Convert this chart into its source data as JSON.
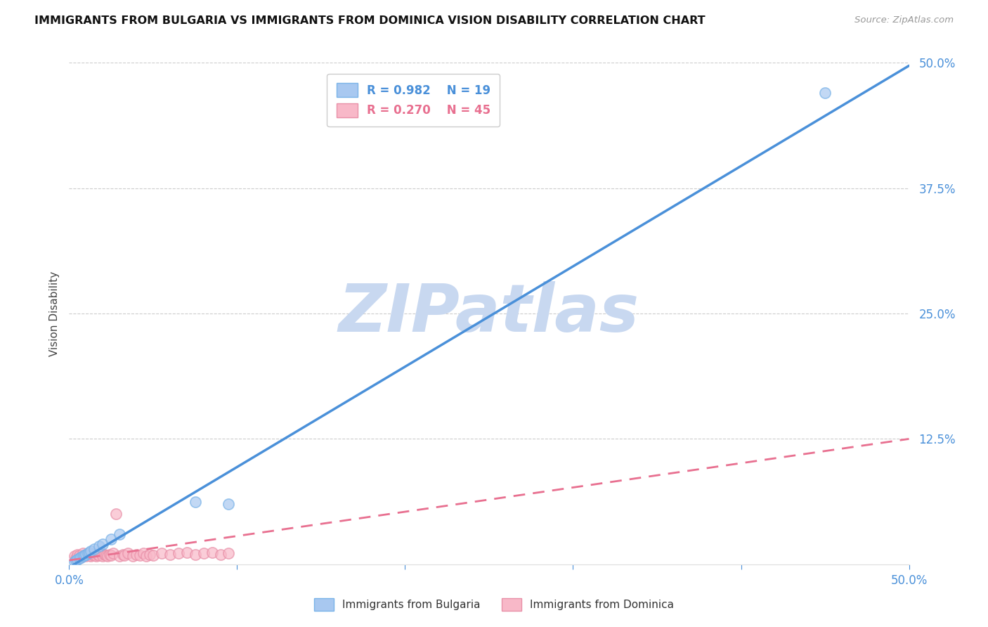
{
  "title": "IMMIGRANTS FROM BULGARIA VS IMMIGRANTS FROM DOMINICA VISION DISABILITY CORRELATION CHART",
  "source": "Source: ZipAtlas.com",
  "ylabel": "Vision Disability",
  "xlim": [
    0.0,
    0.5
  ],
  "ylim": [
    0.0,
    0.5
  ],
  "x_ticks": [
    0.0,
    0.1,
    0.2,
    0.3,
    0.4,
    0.5
  ],
  "x_tick_labels": [
    "0.0%",
    "",
    "",
    "",
    "",
    "50.0%"
  ],
  "y_tick_labels_right": [
    "50.0%",
    "37.5%",
    "25.0%",
    "12.5%"
  ],
  "y_ticks_right": [
    0.5,
    0.375,
    0.25,
    0.125
  ],
  "grid_color": "#cccccc",
  "background_color": "#ffffff",
  "watermark_text": "ZIPatlas",
  "watermark_color": "#c8d8f0",
  "bulgaria_fill_color": "#a8c8f0",
  "bulgaria_edge_color": "#7ab3e8",
  "dominica_fill_color": "#f8b8c8",
  "dominica_edge_color": "#e890a8",
  "bulgaria_line_color": "#4a90d9",
  "dominica_line_color": "#e87090",
  "axis_label_color": "#4a90d9",
  "legend_R_bulgaria": "R = 0.982",
  "legend_N_bulgaria": "N = 19",
  "legend_R_dominica": "R = 0.270",
  "legend_N_dominica": "N = 45",
  "bulgaria_scatter_x": [
    0.003,
    0.004,
    0.005,
    0.006,
    0.007,
    0.008,
    0.009,
    0.01,
    0.011,
    0.012,
    0.013,
    0.015,
    0.018,
    0.02,
    0.025,
    0.03,
    0.075,
    0.095,
    0.45
  ],
  "bulgaria_scatter_y": [
    0.003,
    0.004,
    0.005,
    0.006,
    0.007,
    0.008,
    0.009,
    0.01,
    0.011,
    0.012,
    0.013,
    0.015,
    0.018,
    0.02,
    0.025,
    0.03,
    0.062,
    0.06,
    0.47
  ],
  "dominica_scatter_x": [
    0.003,
    0.004,
    0.005,
    0.006,
    0.007,
    0.008,
    0.009,
    0.01,
    0.011,
    0.012,
    0.013,
    0.014,
    0.015,
    0.016,
    0.017,
    0.018,
    0.019,
    0.02,
    0.021,
    0.022,
    0.023,
    0.024,
    0.025,
    0.026,
    0.028,
    0.03,
    0.032,
    0.033,
    0.035,
    0.038,
    0.04,
    0.042,
    0.044,
    0.046,
    0.048,
    0.05,
    0.055,
    0.06,
    0.065,
    0.07,
    0.075,
    0.08,
    0.085,
    0.09,
    0.095
  ],
  "dominica_scatter_y": [
    0.008,
    0.006,
    0.01,
    0.009,
    0.007,
    0.011,
    0.009,
    0.008,
    0.01,
    0.009,
    0.008,
    0.01,
    0.009,
    0.008,
    0.01,
    0.009,
    0.011,
    0.008,
    0.01,
    0.009,
    0.008,
    0.01,
    0.009,
    0.011,
    0.05,
    0.008,
    0.01,
    0.009,
    0.011,
    0.008,
    0.01,
    0.009,
    0.011,
    0.008,
    0.01,
    0.009,
    0.011,
    0.01,
    0.011,
    0.012,
    0.01,
    0.011,
    0.012,
    0.01,
    0.011
  ],
  "bulgaria_line_x": [
    0.0,
    0.5
  ],
  "bulgaria_line_y": [
    -0.003,
    0.497
  ],
  "dominica_line_x": [
    0.0,
    0.5
  ],
  "dominica_line_y": [
    0.004,
    0.125
  ]
}
